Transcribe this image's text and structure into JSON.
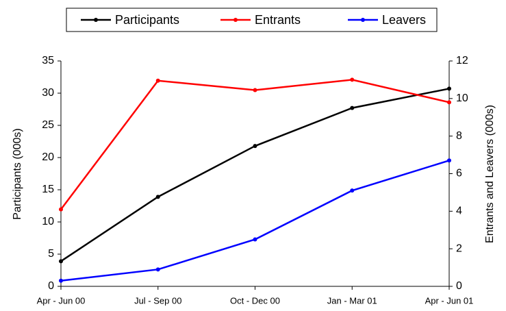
{
  "chart_data": {
    "type": "line",
    "categories": [
      "Apr - Jun 00",
      "Jul - Sep 00",
      "Oct - Dec 00",
      "Jan - Mar 01",
      "Apr - Jun 01"
    ],
    "series": [
      {
        "name": "Participants",
        "color": "#000000",
        "values": [
          3.9,
          13.9,
          21.8,
          27.7,
          30.7
        ]
      },
      {
        "name": "Entrants",
        "color": "#ff0000",
        "axis": "y2",
        "values": [
          4.1,
          10.95,
          10.45,
          11.0,
          9.8
        ]
      },
      {
        "name": "Leavers",
        "color": "#0000ff",
        "axis": "y2",
        "values": [
          0.3,
          0.9,
          2.5,
          5.1,
          6.7
        ]
      }
    ],
    "y_label": "Participants (000s)",
    "y2_label": "Entrants and Leavers (000s)",
    "ylim": [
      0,
      35
    ],
    "yticks": [
      0,
      5,
      10,
      15,
      20,
      25,
      30,
      35
    ],
    "y2lim": [
      0,
      12
    ],
    "y2ticks": [
      0,
      2,
      4,
      6,
      8,
      10,
      12
    ],
    "legend": "top",
    "grid": false
  }
}
